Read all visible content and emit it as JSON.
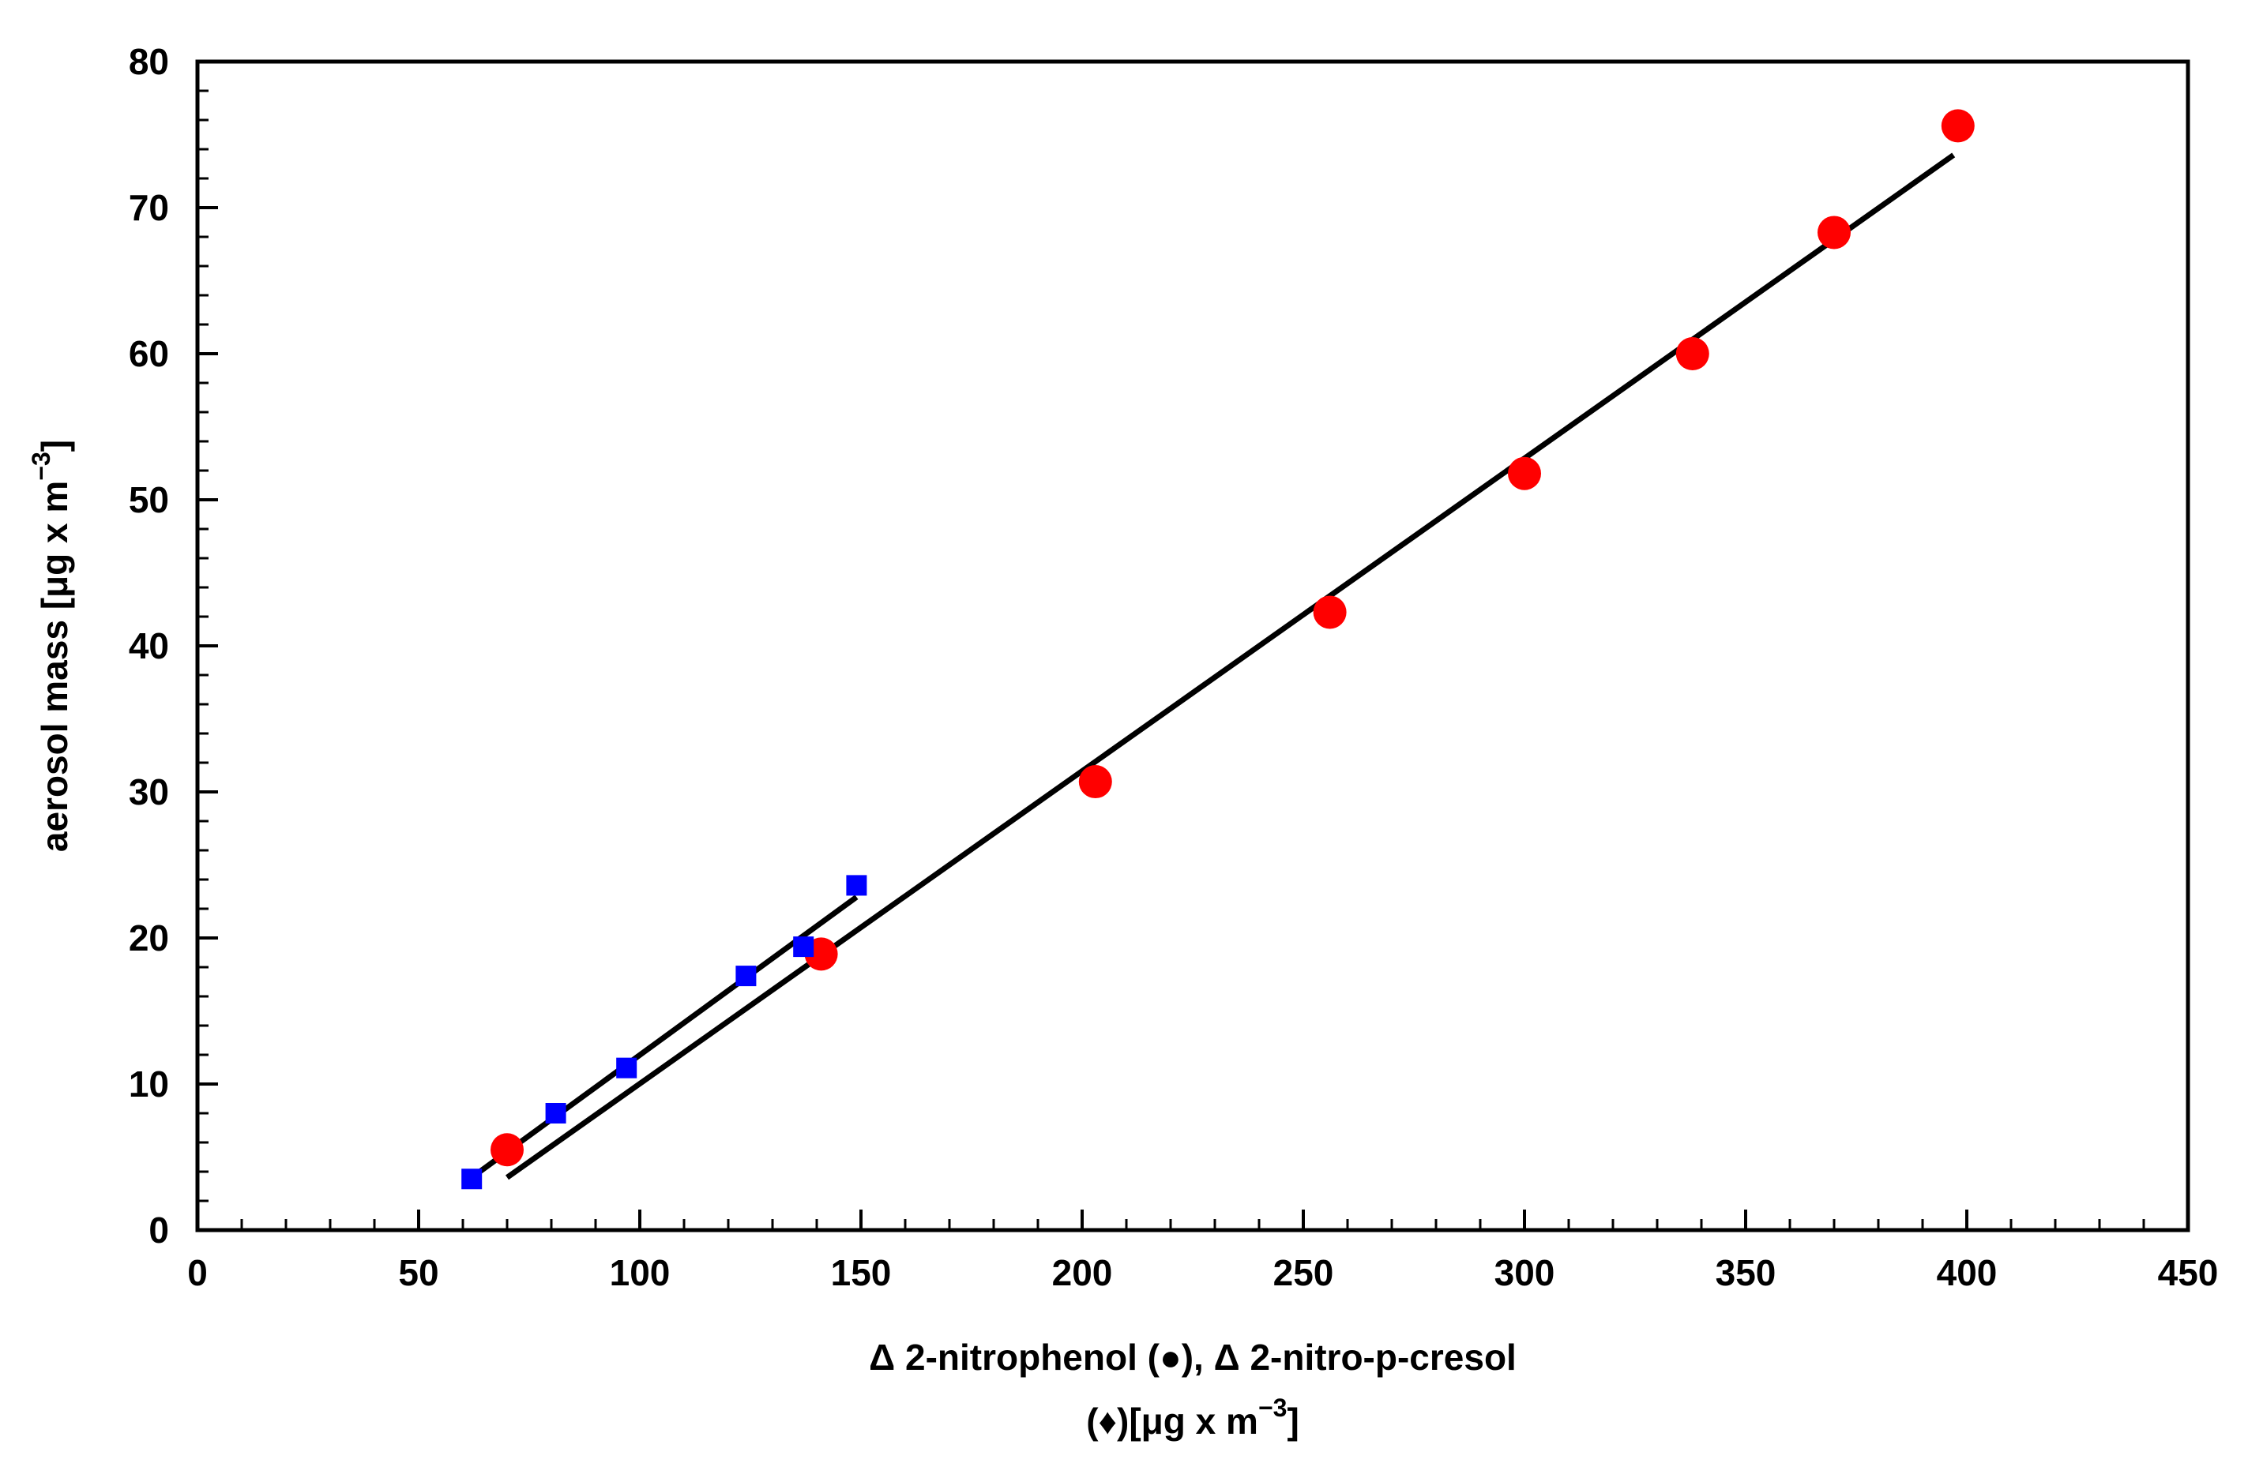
{
  "chart_data": {
    "type": "scatter",
    "title": "",
    "xlabel_line1": "Δ 2-nitrophenol (●), Δ 2-nitro-p-cresol",
    "xlabel_line2_prefix": "(♦)[μg x m",
    "xlabel_line2_sup": "−3",
    "xlabel_line2_suffix": "]",
    "ylabel_prefix": "aerosol mass [μg x m",
    "ylabel_sup": "−3",
    "ylabel_suffix": "]",
    "xlim": [
      0,
      450
    ],
    "ylim": [
      0,
      80
    ],
    "x_ticks": [
      0,
      50,
      100,
      150,
      200,
      250,
      300,
      350,
      400,
      450
    ],
    "x_tick_labels": [
      "0",
      "50",
      "100",
      "150",
      "200",
      "250",
      "300",
      "350",
      "400",
      "450"
    ],
    "x_minor_step": 10,
    "y_ticks": [
      0,
      10,
      20,
      30,
      40,
      50,
      60,
      70,
      80
    ],
    "y_tick_labels": [
      "0",
      "10",
      "20",
      "30",
      "40",
      "50",
      "60",
      "70",
      "80"
    ],
    "y_minor_step": 2,
    "grid": false,
    "series": [
      {
        "marker": "circle",
        "color": "#ff0000",
        "points": [
          {
            "x": 70,
            "y": 5.5
          },
          {
            "x": 141,
            "y": 18.9
          },
          {
            "x": 203,
            "y": 30.7
          },
          {
            "x": 256,
            "y": 42.3
          },
          {
            "x": 300,
            "y": 51.8
          },
          {
            "x": 338,
            "y": 60.0
          },
          {
            "x": 370,
            "y": 68.3
          },
          {
            "x": 398,
            "y": 75.6
          }
        ],
        "fit": {
          "x_start": 70,
          "y_start": 3.6,
          "x_end": 397,
          "y_end": 73.6
        }
      },
      {
        "marker": "square",
        "color": "#0000ff",
        "points": [
          {
            "x": 62,
            "y": 3.5
          },
          {
            "x": 81,
            "y": 8.0
          },
          {
            "x": 97,
            "y": 11.1
          },
          {
            "x": 124,
            "y": 17.4
          },
          {
            "x": 137,
            "y": 19.4
          },
          {
            "x": 149,
            "y": 23.6
          }
        ],
        "fit": {
          "x_start": 62,
          "y_start": 3.6,
          "x_end": 149,
          "y_end": 22.8
        }
      }
    ]
  }
}
